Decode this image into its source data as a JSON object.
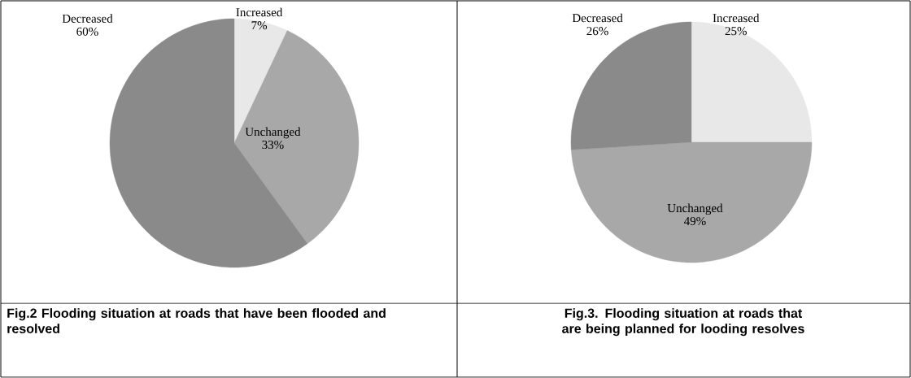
{
  "chart_data": [
    {
      "type": "pie",
      "title": "Fig.2 Flooding situation at roads that have been flooded and resolved",
      "categories": [
        "Increased",
        "Unchanged",
        "Decreased"
      ],
      "values": [
        7,
        33,
        60
      ],
      "value_labels": [
        "7%",
        "33%",
        "60%"
      ],
      "colors": [
        "#e8e8e8",
        "#a8a8a8",
        "#8a8a8a"
      ]
    },
    {
      "type": "pie",
      "title": "Fig.3. Flooding situation at roads that are being planned for looding resolves",
      "categories": [
        "Increased",
        "Unchanged",
        "Decreased"
      ],
      "values": [
        25,
        49,
        26
      ],
      "value_labels": [
        "25%",
        "49%",
        "26%"
      ],
      "colors": [
        "#e8e8e8",
        "#a8a8a8",
        "#8a8a8a"
      ]
    }
  ]
}
